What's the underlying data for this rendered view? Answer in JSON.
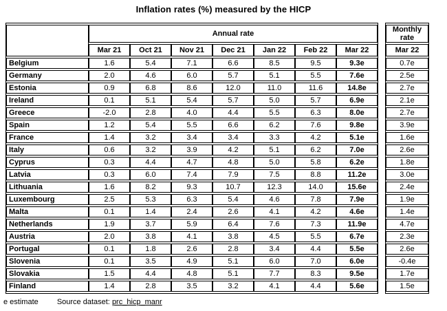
{
  "colors": {
    "text": "#000000",
    "background": "#ffffff",
    "border": "#000000"
  },
  "chart_data": {
    "type": "table",
    "title": "Inflation rates (%) measured by the HICP",
    "group_header": "Annual rate",
    "annual_columns": [
      "Mar 21",
      "Oct 21",
      "Nov 21",
      "Dec 21",
      "Jan 22",
      "Feb 22",
      "Mar 22"
    ],
    "monthly_header": "Monthly rate",
    "monthly_column": "Mar 22",
    "rows": [
      {
        "country": "Belgium",
        "annual": [
          "1.6",
          "5.4",
          "7.1",
          "6.6",
          "8.5",
          "9.5",
          "9.3e"
        ],
        "monthly": "0.7e"
      },
      {
        "country": "Germany",
        "annual": [
          "2.0",
          "4.6",
          "6.0",
          "5.7",
          "5.1",
          "5.5",
          "7.6e"
        ],
        "monthly": "2.5e"
      },
      {
        "country": "Estonia",
        "annual": [
          "0.9",
          "6.8",
          "8.6",
          "12.0",
          "11.0",
          "11.6",
          "14.8e"
        ],
        "monthly": "2.7e"
      },
      {
        "country": "Ireland",
        "annual": [
          "0.1",
          "5.1",
          "5.4",
          "5.7",
          "5.0",
          "5.7",
          "6.9e"
        ],
        "monthly": "2.1e"
      },
      {
        "country": "Greece",
        "annual": [
          "-2.0",
          "2.8",
          "4.0",
          "4.4",
          "5.5",
          "6.3",
          "8.0e"
        ],
        "monthly": "2.7e"
      },
      {
        "country": "Spain",
        "annual": [
          "1.2",
          "5.4",
          "5.5",
          "6.6",
          "6.2",
          "7.6",
          "9.8e"
        ],
        "monthly": "3.9e"
      },
      {
        "country": "France",
        "annual": [
          "1.4",
          "3.2",
          "3.4",
          "3.4",
          "3.3",
          "4.2",
          "5.1e"
        ],
        "monthly": "1.6e"
      },
      {
        "country": "Italy",
        "annual": [
          "0.6",
          "3.2",
          "3.9",
          "4.2",
          "5.1",
          "6.2",
          "7.0e"
        ],
        "monthly": "2.6e"
      },
      {
        "country": "Cyprus",
        "annual": [
          "0.3",
          "4.4",
          "4.7",
          "4.8",
          "5.0",
          "5.8",
          "6.2e"
        ],
        "monthly": "1.8e"
      },
      {
        "country": "Latvia",
        "annual": [
          "0.3",
          "6.0",
          "7.4",
          "7.9",
          "7.5",
          "8.8",
          "11.2e"
        ],
        "monthly": "3.0e"
      },
      {
        "country": "Lithuania",
        "annual": [
          "1.6",
          "8.2",
          "9.3",
          "10.7",
          "12.3",
          "14.0",
          "15.6e"
        ],
        "monthly": "2.4e"
      },
      {
        "country": "Luxembourg",
        "annual": [
          "2.5",
          "5.3",
          "6.3",
          "5.4",
          "4.6",
          "7.8",
          "7.9e"
        ],
        "monthly": "1.9e"
      },
      {
        "country": "Malta",
        "annual": [
          "0.1",
          "1.4",
          "2.4",
          "2.6",
          "4.1",
          "4.2",
          "4.6e"
        ],
        "monthly": "1.4e"
      },
      {
        "country": "Netherlands",
        "annual": [
          "1.9",
          "3.7",
          "5.9",
          "6.4",
          "7.6",
          "7.3",
          "11.9e"
        ],
        "monthly": "4.7e"
      },
      {
        "country": "Austria",
        "annual": [
          "2.0",
          "3.8",
          "4.1",
          "3.8",
          "4.5",
          "5.5",
          "6.7e"
        ],
        "monthly": "2.3e"
      },
      {
        "country": "Portugal",
        "annual": [
          "0.1",
          "1.8",
          "2.6",
          "2.8",
          "3.4",
          "4.4",
          "5.5e"
        ],
        "monthly": "2.6e"
      },
      {
        "country": "Slovenia",
        "annual": [
          "0.1",
          "3.5",
          "4.9",
          "5.1",
          "6.0",
          "7.0",
          "6.0e"
        ],
        "monthly": "-0.4e"
      },
      {
        "country": "Slovakia",
        "annual": [
          "1.5",
          "4.4",
          "4.8",
          "5.1",
          "7.7",
          "8.3",
          "9.5e"
        ],
        "monthly": "1.7e"
      },
      {
        "country": "Finland",
        "annual": [
          "1.4",
          "2.8",
          "3.5",
          "3.2",
          "4.1",
          "4.4",
          "5.6e"
        ],
        "monthly": "1.5e"
      }
    ],
    "footnote": "e estimate",
    "source_label": "Source dataset:",
    "source_link": "prc_hicp_manr"
  }
}
